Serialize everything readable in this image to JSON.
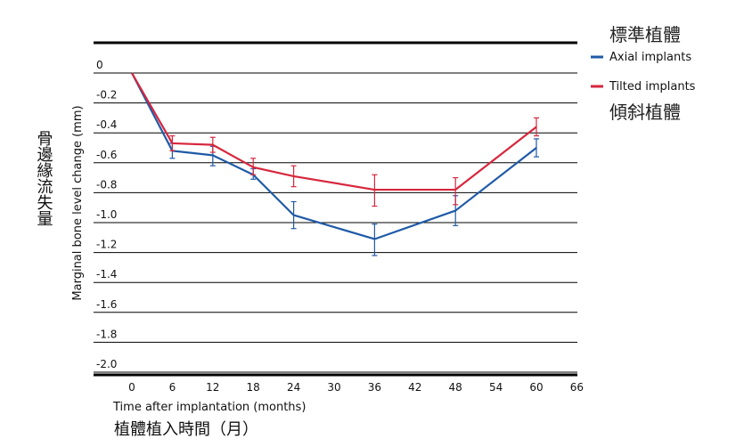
{
  "chart_data": {
    "type": "line",
    "x": [
      0,
      6,
      12,
      18,
      24,
      36,
      48,
      60
    ],
    "series": [
      {
        "name": "Axial implants",
        "name_zh": "標準植體",
        "color": "#1f5aa6",
        "values": [
          0,
          -0.52,
          -0.55,
          -0.68,
          -0.95,
          -1.11,
          -0.92,
          -0.5
        ],
        "err_lower": [
          null,
          -0.57,
          -0.62,
          -0.71,
          -1.04,
          -1.22,
          -1.02,
          -0.56
        ],
        "err_upper": [
          null,
          -0.47,
          -0.49,
          -0.64,
          -0.86,
          -1.01,
          -0.82,
          -0.44
        ]
      },
      {
        "name": "Tilted implants",
        "name_zh": "傾斜植體",
        "color": "#d7263d",
        "values": [
          0,
          -0.47,
          -0.48,
          -0.63,
          -0.69,
          -0.78,
          -0.78,
          -0.36
        ],
        "err_lower": [
          null,
          -0.52,
          -0.53,
          -0.68,
          -0.76,
          -0.89,
          -0.88,
          -0.42
        ],
        "err_upper": [
          null,
          -0.42,
          -0.43,
          -0.57,
          -0.62,
          -0.68,
          -0.7,
          -0.3
        ]
      }
    ],
    "xlabel": "Time after implantation (months)",
    "xlabel_zh": "植體植入時間（月）",
    "ylabel": "Marginal bone level change (mm)",
    "ylabel_zh": "骨邊緣流失量",
    "xlim": [
      -3,
      66
    ],
    "ylim": [
      -2.05,
      0.2
    ],
    "x_ticks": [
      "0",
      "6",
      "12",
      "18",
      "24",
      "30",
      "36",
      "42",
      "48",
      "54",
      "60",
      "66"
    ],
    "x_tick_values": [
      0,
      6,
      12,
      18,
      24,
      30,
      36,
      42,
      48,
      54,
      60,
      66
    ],
    "y_ticks": [
      "0",
      "-0.2",
      "-0.4",
      "-0.6",
      "-0.8",
      "-1.0",
      "-1.2",
      "-1.4",
      "-1.6",
      "-1.8",
      "-2.0"
    ],
    "y_tick_values": [
      0,
      -0.2,
      -0.4,
      -0.6,
      -0.8,
      -1.0,
      -1.2,
      -1.4,
      -1.6,
      -1.8,
      -2.0
    ],
    "grid": true,
    "legend_position": "top-right"
  }
}
